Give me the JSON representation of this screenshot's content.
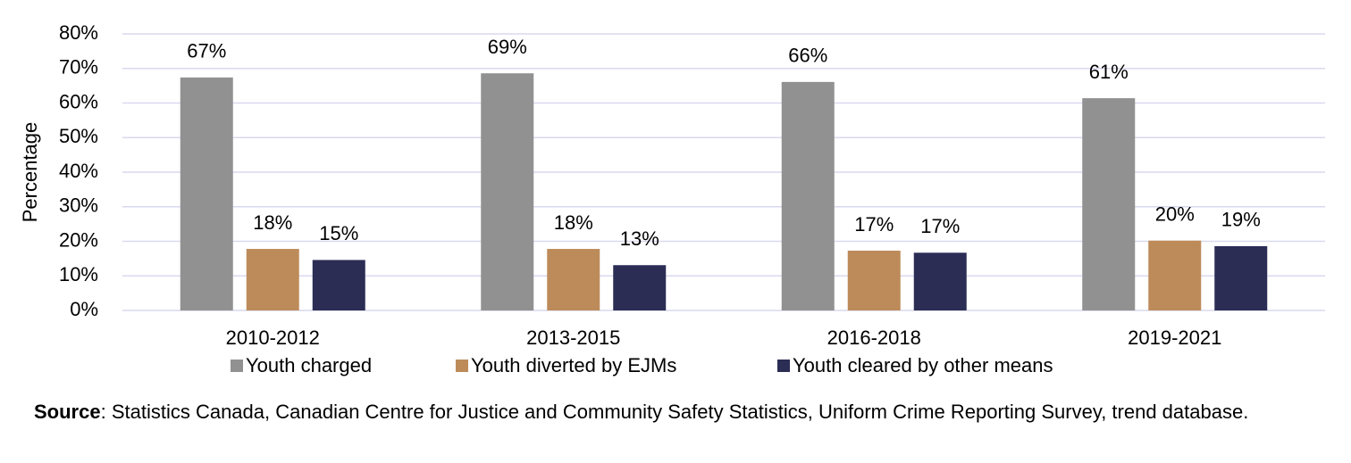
{
  "chart_data": {
    "type": "bar",
    "y_label": "Percentage",
    "categories": [
      "2010-2012",
      "2013-2015",
      "2016-2018",
      "2019-2021"
    ],
    "series": [
      {
        "name": "Youth charged",
        "color": "#919191",
        "values": [
          67.4,
          68.6,
          66.1,
          61.4
        ],
        "value_labels": [
          "67%",
          "69%",
          "66%",
          "61%"
        ]
      },
      {
        "name": "Youth diverted by EJMs",
        "color": "#bd8b5a",
        "values": [
          17.8,
          17.8,
          17.3,
          20.2
        ],
        "value_labels": [
          "18%",
          "18%",
          "17%",
          "20%"
        ]
      },
      {
        "name": "Youth cleared by other means",
        "color": "#2b2d55",
        "values": [
          14.6,
          13.1,
          16.7,
          18.6
        ],
        "value_labels": [
          "15%",
          "13%",
          "17%",
          "19%"
        ]
      }
    ],
    "ylim": [
      0,
      80
    ],
    "yticks": [
      {
        "value": 0,
        "label": "0%"
      },
      {
        "value": 10,
        "label": "10%"
      },
      {
        "value": 20,
        "label": "20%"
      },
      {
        "value": 30,
        "label": "30%"
      },
      {
        "value": 40,
        "label": "40%"
      },
      {
        "value": 50,
        "label": "50%"
      },
      {
        "value": 60,
        "label": "60%"
      },
      {
        "value": 70,
        "label": "70%"
      },
      {
        "value": 80,
        "label": "80%"
      }
    ],
    "grid": true,
    "grid_color": "#d9d9ef",
    "legend": "bottom",
    "source_label": "Source",
    "source_text": ": Statistics Canada, Canadian Centre for Justice and Community Safety Statistics, Uniform Crime Reporting Survey, trend database."
  }
}
